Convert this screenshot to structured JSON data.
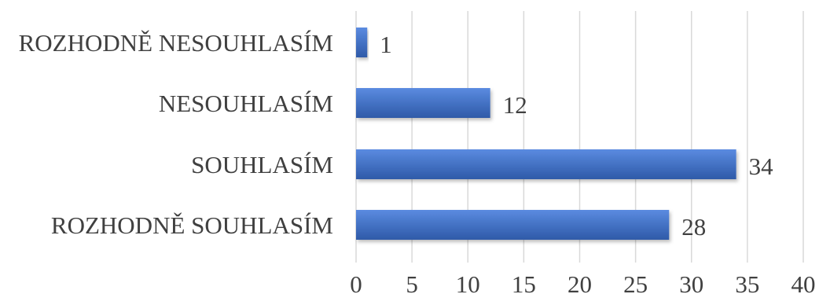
{
  "chart_data": {
    "type": "bar",
    "orientation": "horizontal",
    "categories": [
      "ROZHODNĚ NESOUHLASÍM",
      "NESOUHLASÍM",
      "SOUHLASÍM",
      "ROZHODNĚ SOUHLASÍM"
    ],
    "values": [
      1,
      12,
      34,
      28
    ],
    "xlim": [
      0,
      40
    ],
    "x_ticks": [
      0,
      5,
      10,
      15,
      20,
      25,
      30,
      35,
      40
    ],
    "grid": true,
    "data_labels": true,
    "bar_color": "#4472c4",
    "bar_color_light": "#5b8be0",
    "bar_color_dark": "#2f5aa8",
    "title": "",
    "xlabel": "",
    "ylabel": ""
  }
}
